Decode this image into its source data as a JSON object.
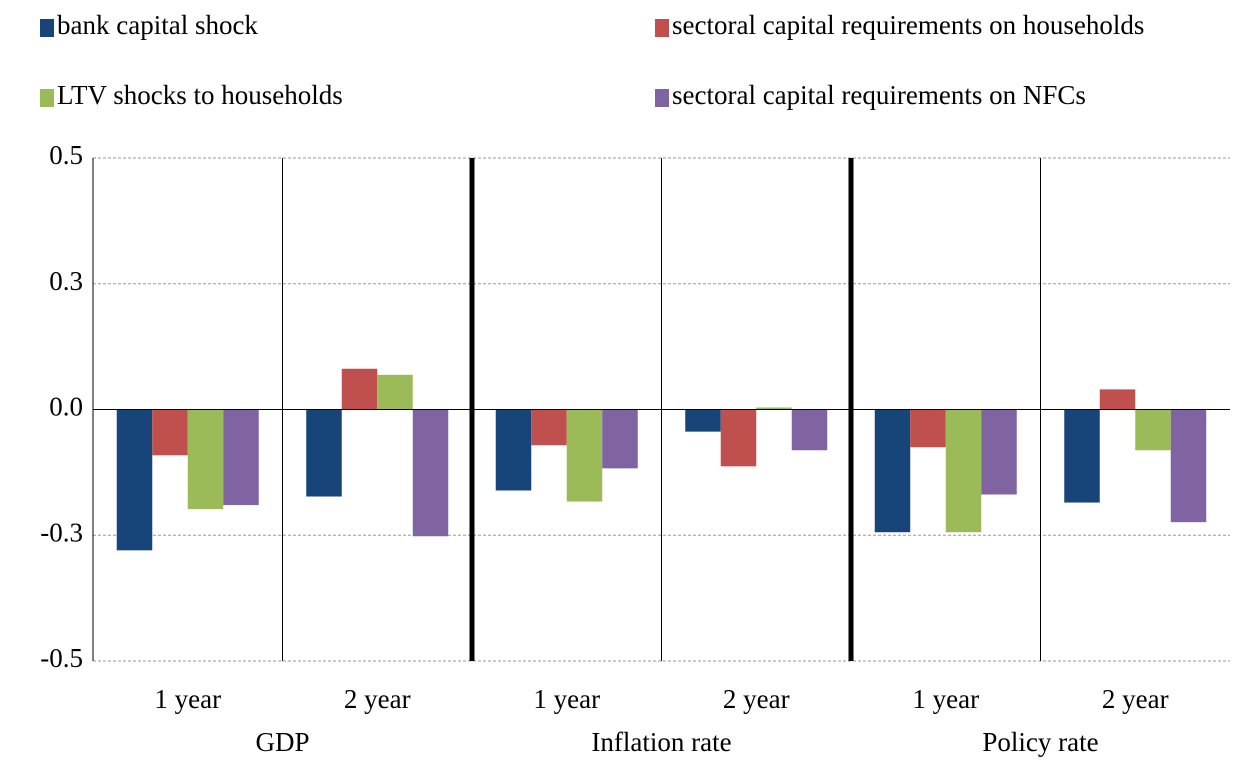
{
  "chart_data": {
    "type": "bar",
    "categories": [
      "1 year",
      "2 year",
      "1 year",
      "2 year",
      "1 year",
      "2 year"
    ],
    "groups": [
      "GDP",
      "Inflation rate",
      "Policy rate"
    ],
    "series": [
      {
        "name": "bank capital shock",
        "color": "#17457a",
        "values": [
          -0.28,
          -0.173,
          -0.161,
          -0.044,
          -0.244,
          -0.185
        ]
      },
      {
        "name": "sectoral capital requirements on households",
        "color": "#c0504d",
        "values": [
          -0.091,
          0.081,
          -0.071,
          -0.113,
          -0.075,
          0.04
        ]
      },
      {
        "name": "LTV shocks to households",
        "color": "#9bbb59",
        "values": [
          -0.198,
          0.069,
          -0.183,
          0.004,
          -0.244,
          -0.081
        ]
      },
      {
        "name": "sectoral capital requirements on NFCs",
        "color": "#8064a2",
        "values": [
          -0.19,
          -0.252,
          -0.117,
          -0.081,
          -0.169,
          -0.224
        ]
      }
    ],
    "ylim": [
      -0.5,
      0.5
    ],
    "yticks": [
      -0.5,
      {
        "value": -0.25,
        "label": "-0.3"
      },
      {
        "value": 0,
        "label": "0.0"
      },
      {
        "value": 0.25,
        "label": "0.3"
      },
      0.5
    ],
    "grid": true
  }
}
